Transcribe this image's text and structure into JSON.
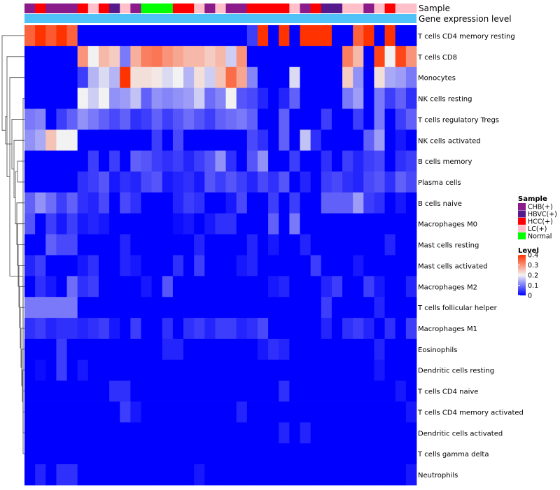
{
  "chart_data": {
    "type": "heatmap",
    "title": "",
    "annotation_tracks": [
      "Sample",
      "Gene expression level"
    ],
    "sample_colors": {
      "CHB(+)": "#8B1A8B",
      "HBVC(+)": "#551A8B",
      "HCC(+)": "#FF0000",
      "LC(+)": "#FFC0CB",
      "Normal": "#00FF00"
    },
    "sample_groups": [
      "CHB(+)",
      "HCC(+)",
      "CHB(+)",
      "CHB(+)",
      "CHB(+)",
      "HCC(+)",
      "LC(+)",
      "HCC(+)",
      "HBVC(+)",
      "LC(+)",
      "CHB(+)",
      "Normal",
      "Normal",
      "Normal",
      "HCC(+)",
      "HCC(+)",
      "LC(+)",
      "CHB(+)",
      "LC(+)",
      "CHB(+)",
      "CHB(+)",
      "HCC(+)",
      "HCC(+)",
      "HCC(+)",
      "HCC(+)",
      "LC(+)",
      "CHB(+)",
      "HCC(+)",
      "HBVC(+)",
      "HBVC(+)",
      "LC(+)",
      "LC(+)",
      "CHB(+)",
      "LC(+)",
      "HCC(+)",
      "LC(+)",
      "LC(+)"
    ],
    "gene_expression_color": "#4FC3F7",
    "rows": [
      "T cells CD4 memory resting",
      "T cells CD8",
      "Monocytes",
      "NK cells resting",
      "T cells regulatory  Tregs",
      "NK cells activated",
      "B cells memory",
      "Plasma cells",
      "B cells naive",
      "Macrophages M0",
      "Mast cells resting",
      "Mast cells activated",
      "Macrophages M2",
      "T cells follicular helper",
      "Macrophages M1",
      "Eosinophils",
      "Dendritic cells resting",
      "T cells CD4 naive",
      "T cells CD4 memory activated",
      "Dendritic cells activated",
      "T cells gamma delta",
      "Neutrophils"
    ],
    "values": [
      [
        0.35,
        0.4,
        0.36,
        0.4,
        0.35,
        0,
        0,
        0,
        0,
        0,
        0,
        0,
        0,
        0,
        0,
        0,
        0,
        0,
        0,
        0,
        0,
        0.05,
        0.4,
        0,
        0.4,
        0,
        0.4,
        0.4,
        0.4,
        0,
        0,
        0.35,
        0.4,
        0,
        0.4,
        0,
        0
      ],
      [
        0,
        0,
        0,
        0,
        0,
        0.3,
        0.2,
        0.26,
        0.24,
        0.1,
        0.27,
        0.32,
        0.33,
        0.3,
        0.28,
        0.26,
        0.26,
        0.24,
        0.26,
        0.17,
        0.3,
        0,
        0,
        0,
        0,
        0,
        0,
        0,
        0,
        0,
        0.32,
        0.26,
        0,
        0.38,
        0.2,
        0.38,
        0.3
      ],
      [
        0,
        0,
        0,
        0,
        0,
        0.05,
        0.15,
        0.18,
        0.15,
        0.4,
        0.22,
        0.22,
        0.21,
        0.18,
        0.2,
        0.15,
        0.22,
        0.17,
        0.25,
        0.34,
        0.28,
        0.11,
        0,
        0,
        0,
        0.18,
        0,
        0,
        0,
        0,
        0.24,
        0.12,
        0,
        0.22,
        0.14,
        0.13,
        0.1
      ],
      [
        0,
        0,
        0,
        0,
        0,
        0.2,
        0.17,
        0.2,
        0.12,
        0.13,
        0.16,
        0.08,
        0.12,
        0.11,
        0.12,
        0.13,
        0.17,
        0.09,
        0.11,
        0.2,
        0.07,
        0.06,
        0.03,
        0,
        0.03,
        0.08,
        0,
        0,
        0,
        0,
        0.1,
        0.13,
        0,
        0.1,
        0.05,
        0.08,
        0.04
      ],
      [
        0.1,
        0.11,
        0,
        0.05,
        0.08,
        0.12,
        0.1,
        0.08,
        0.06,
        0.08,
        0.04,
        0.05,
        0.08,
        0.05,
        0.07,
        0.09,
        0.07,
        0.05,
        0.08,
        0.09,
        0.1,
        0.08,
        0,
        0,
        0.08,
        0,
        0,
        0,
        0.05,
        0,
        0,
        0.05,
        0,
        0.1,
        0,
        0.05,
        0.08
      ],
      [
        0.12,
        0.14,
        0.25,
        0.2,
        0.2,
        0,
        0,
        0,
        0,
        0,
        0,
        0,
        0.05,
        0,
        0.06,
        0,
        0,
        0,
        0,
        0,
        0,
        0.06,
        0.04,
        0,
        0.08,
        0,
        0.16,
        0.04,
        0,
        0,
        0,
        0,
        0.08,
        0.13,
        0,
        0.02,
        0
      ],
      [
        0,
        0,
        0,
        0,
        0,
        0,
        0.05,
        0,
        0.05,
        0,
        0.08,
        0.07,
        0.05,
        0.04,
        0.05,
        0.03,
        0.05,
        0.07,
        0.12,
        0.04,
        0,
        0.07,
        0.12,
        0,
        0,
        0.05,
        0,
        0,
        0.04,
        0,
        0.05,
        0.03,
        0.05,
        0.06,
        0,
        0.04,
        0.05
      ],
      [
        0,
        0,
        0,
        0,
        0,
        0.04,
        0.05,
        0.07,
        0.02,
        0.04,
        0.03,
        0.06,
        0.07,
        0.02,
        0.03,
        0.04,
        0.02,
        0.07,
        0.05,
        0.07,
        0.05,
        0.03,
        0.06,
        0.04,
        0.07,
        0,
        0.03,
        0,
        0.05,
        0.06,
        0.04,
        0.03,
        0.06,
        0.07,
        0.04,
        0.08,
        0.06
      ],
      [
        0.08,
        0.12,
        0.09,
        0.05,
        0.08,
        0.04,
        0.03,
        0.06,
        0,
        0.06,
        0.04,
        0,
        0,
        0,
        0.03,
        0.05,
        0.04,
        0,
        0,
        0.02,
        0.06,
        0,
        0,
        0.05,
        0,
        0.05,
        0,
        0,
        0.08,
        0.08,
        0.08,
        0.13,
        0.05,
        0.04,
        0,
        0.02,
        0
      ],
      [
        0.07,
        0,
        0.05,
        0.02,
        0.05,
        0.02,
        0.03,
        0.02,
        0,
        0,
        0,
        0,
        0,
        0,
        0.01,
        0.02,
        0,
        0.02,
        0.04,
        0.04,
        0,
        0,
        0,
        0.08,
        0,
        0.1,
        0,
        0,
        0,
        0,
        0,
        0,
        0,
        0,
        0,
        0,
        0
      ],
      [
        0,
        0,
        0.08,
        0.06,
        0.06,
        0,
        0,
        0,
        0,
        0.03,
        0,
        0,
        0,
        0,
        0,
        0,
        0.03,
        0,
        0,
        0,
        0,
        0.03,
        0,
        0.02,
        0,
        0,
        0.03,
        0,
        0,
        0,
        0,
        0,
        0,
        0,
        0.03,
        0,
        0
      ],
      [
        0.03,
        0.05,
        0,
        0,
        0,
        0.02,
        0.04,
        0,
        0,
        0.03,
        0.02,
        0,
        0,
        0,
        0.04,
        0,
        0.05,
        0,
        0,
        0,
        0.02,
        0.03,
        0,
        0,
        0,
        0,
        0,
        0.05,
        0,
        0,
        0,
        0.02,
        0,
        0,
        0,
        0,
        0
      ],
      [
        0,
        0.04,
        0.02,
        0,
        0.09,
        0.04,
        0.05,
        0,
        0,
        0,
        0,
        0.02,
        0,
        0.07,
        0,
        0,
        0,
        0,
        0,
        0,
        0,
        0,
        0,
        0.02,
        0.03,
        0,
        0,
        0,
        0.03,
        0.05,
        0,
        0,
        0.05,
        0.02,
        0,
        0,
        0.03
      ],
      [
        0.1,
        0.1,
        0.1,
        0.1,
        0.1,
        0,
        0,
        0,
        0,
        0,
        0,
        0,
        0,
        0,
        0,
        0,
        0,
        0,
        0,
        0,
        0,
        0,
        0,
        0,
        0,
        0,
        0,
        0,
        0.05,
        0,
        0,
        0,
        0,
        0.03,
        0,
        0,
        0
      ],
      [
        0.04,
        0.05,
        0.03,
        0.04,
        0.04,
        0.03,
        0.04,
        0.05,
        0.02,
        0,
        0.05,
        0,
        0,
        0.04,
        0,
        0.04,
        0.05,
        0.03,
        0.05,
        0.05,
        0.03,
        0.04,
        0.06,
        0,
        0,
        0,
        0,
        0,
        0.03,
        0,
        0.04,
        0.05,
        0.03,
        0,
        0.04,
        0,
        0.05
      ],
      [
        0,
        0,
        0,
        0.05,
        0,
        0,
        0,
        0,
        0,
        0,
        0,
        0,
        0,
        0.03,
        0.03,
        0,
        0,
        0,
        0,
        0,
        0,
        0,
        0.02,
        0.04,
        0.03,
        0,
        0,
        0,
        0,
        0,
        0,
        0,
        0,
        0.03,
        0,
        0,
        0
      ],
      [
        0,
        0.01,
        0,
        0.05,
        0,
        0.02,
        0,
        0,
        0,
        0,
        0,
        0,
        0,
        0,
        0,
        0,
        0,
        0,
        0,
        0,
        0,
        0,
        0,
        0,
        0,
        0,
        0,
        0,
        0,
        0,
        0,
        0,
        0,
        0.02,
        0,
        0,
        0
      ],
      [
        0,
        0,
        0,
        0,
        0,
        0,
        0,
        0,
        0.04,
        0.04,
        0,
        0,
        0,
        0,
        0,
        0,
        0,
        0,
        0,
        0,
        0,
        0,
        0,
        0,
        0.04,
        0,
        0,
        0,
        0,
        0,
        0,
        0,
        0,
        0,
        0,
        0.02,
        0
      ],
      [
        0,
        0,
        0,
        0,
        0,
        0,
        0,
        0,
        0,
        0.05,
        0.02,
        0,
        0,
        0,
        0,
        0,
        0,
        0,
        0,
        0,
        0.03,
        0,
        0,
        0,
        0,
        0,
        0,
        0,
        0,
        0,
        0,
        0,
        0,
        0,
        0,
        0,
        0.02
      ],
      [
        0,
        0,
        0,
        0,
        0,
        0,
        0,
        0,
        0,
        0,
        0,
        0,
        0,
        0,
        0,
        0,
        0,
        0,
        0,
        0,
        0,
        0,
        0,
        0,
        0.03,
        0,
        0.03,
        0,
        0,
        0,
        0,
        0,
        0,
        0,
        0,
        0,
        0
      ],
      [
        0,
        0,
        0,
        0,
        0,
        0,
        0,
        0,
        0,
        0,
        0,
        0,
        0,
        0,
        0,
        0,
        0,
        0,
        0,
        0,
        0,
        0,
        0,
        0,
        0,
        0,
        0,
        0,
        0,
        0,
        0,
        0,
        0,
        0,
        0,
        0,
        0
      ],
      [
        0,
        0.03,
        0,
        0.04,
        0.04,
        0,
        0,
        0,
        0,
        0,
        0,
        0,
        0,
        0,
        0,
        0,
        0.02,
        0,
        0,
        0,
        0,
        0,
        0,
        0,
        0,
        0,
        0,
        0,
        0,
        0,
        0,
        0,
        0,
        0,
        0,
        0,
        0.02
      ]
    ],
    "scale": {
      "min": 0,
      "max": 0.4,
      "low_color": "#0000FF",
      "mid_color": "#F2F2F2",
      "high_color": "#FF3300"
    },
    "legend": {
      "sample_title": "Sample",
      "sample_entries": [
        "CHB(+)",
        "HBVC(+)",
        "HCC(+)",
        "LC(+)",
        "Normal"
      ],
      "level_title": "Level",
      "level_ticks": [
        "0.4",
        "0.3",
        "0.2",
        "0.1",
        "0"
      ],
      "placement": "right"
    },
    "row_dendrogram": true
  }
}
